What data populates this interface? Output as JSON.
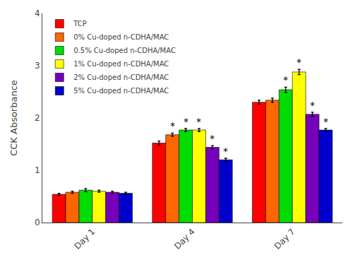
{
  "chart_data": {
    "type": "bar",
    "categories": [
      "Day 1",
      "Day 4",
      "Day 7"
    ],
    "series": [
      {
        "name": "TCP",
        "color": "#ff0000",
        "values": [
          0.54,
          1.52,
          2.3
        ],
        "errors": [
          0.02,
          0.04,
          0.04
        ]
      },
      {
        "name": "0% Cu-doped n-CDHA/MAC",
        "color": "#ff6600",
        "values": [
          0.58,
          1.68,
          2.34
        ],
        "errors": [
          0.02,
          0.03,
          0.04
        ]
      },
      {
        "name": "0.5% Cu-doped n-CDHA/MAC",
        "color": "#00dd00",
        "values": [
          0.62,
          1.77,
          2.54
        ],
        "errors": [
          0.03,
          0.03,
          0.05
        ]
      },
      {
        "name": "1% Cu-doped n-CDHA/MAC",
        "color": "#ffff00",
        "values": [
          0.6,
          1.77,
          2.88
        ],
        "errors": [
          0.02,
          0.03,
          0.05
        ]
      },
      {
        "name": "2% Cu-doped n-CDHA/MAC",
        "color": "#7700bb",
        "values": [
          0.58,
          1.44,
          2.07
        ],
        "errors": [
          0.02,
          0.03,
          0.04
        ]
      },
      {
        "name": "5% Cu-doped n-CDHA/MAC",
        "color": "#0000cc",
        "values": [
          0.56,
          1.2,
          1.77
        ],
        "errors": [
          0.02,
          0.03,
          0.03
        ]
      }
    ],
    "annotations": [
      {
        "series": "0% Cu-doped n-CDHA/MAC",
        "category": "Day 4",
        "text": "*"
      },
      {
        "series": "0.5% Cu-doped n-CDHA/MAC",
        "category": "Day 4",
        "text": "*"
      },
      {
        "series": "0.5% Cu-doped n-CDHA/MAC",
        "category": "Day 7",
        "text": "*"
      },
      {
        "series": "1% Cu-doped n-CDHA/MAC",
        "category": "Day 4",
        "text": "*"
      },
      {
        "series": "1% Cu-doped n-CDHA/MAC",
        "category": "Day 7",
        "text": "*"
      },
      {
        "series": "2% Cu-doped n-CDHA/MAC",
        "category": "Day 4",
        "text": "*"
      },
      {
        "series": "2% Cu-doped n-CDHA/MAC",
        "category": "Day 7",
        "text": "*"
      },
      {
        "series": "5% Cu-doped n-CDHA/MAC",
        "category": "Day 4",
        "text": "*"
      },
      {
        "series": "5% Cu-doped n-CDHA/MAC",
        "category": "Day 7",
        "text": "*"
      }
    ],
    "ylabel": "CCK Absorbance",
    "ylim": [
      0,
      4
    ],
    "yticks": [
      0,
      1,
      2,
      3,
      4
    ],
    "grid": false,
    "legend": "upper left"
  }
}
